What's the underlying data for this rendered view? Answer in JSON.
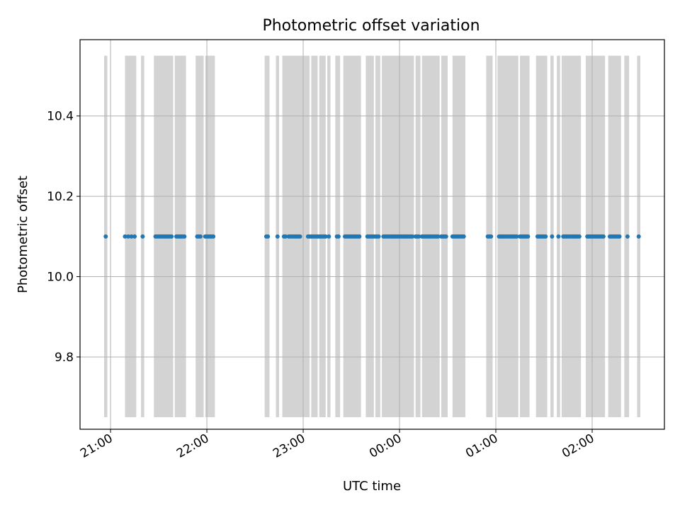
{
  "chart_data": {
    "type": "scatter",
    "title": "Photometric offset variation",
    "xlabel": "UTC time",
    "ylabel": "Photometric offset",
    "x_is_time": true,
    "xlim": [
      "20:41",
      "02:45"
    ],
    "ylim": [
      9.62,
      10.59
    ],
    "grid": true,
    "x_ticks": [
      "21:00",
      "22:00",
      "23:00",
      "00:00",
      "01:00",
      "02:00"
    ],
    "y_ticks": [
      "9.8",
      "10.0",
      "10.2",
      "10.4"
    ],
    "colors": {
      "points": "#1f77b4",
      "bands": "#d3d3d3",
      "grid": "#b0b0b0"
    },
    "band_range": [
      9.65,
      10.55
    ],
    "bands": [
      [
        "20:56",
        "20:58"
      ],
      [
        "21:09",
        "21:16"
      ],
      [
        "21:19",
        "21:21"
      ],
      [
        "21:27",
        "21:39"
      ],
      [
        "21:40",
        "21:47"
      ],
      [
        "21:53",
        "21:58"
      ],
      [
        "21:59",
        "22:05"
      ],
      [
        "22:36",
        "22:39"
      ],
      [
        "22:43",
        "22:45"
      ],
      [
        "22:47",
        "23:04"
      ],
      [
        "23:05",
        "23:09"
      ],
      [
        "23:10",
        "23:14"
      ],
      [
        "23:15",
        "23:17"
      ],
      [
        "23:20",
        "23:23"
      ],
      [
        "23:25",
        "23:36"
      ],
      [
        "23:39",
        "23:44"
      ],
      [
        "23:45",
        "23:48"
      ],
      [
        "23:49",
        "00:09"
      ],
      [
        "00:10",
        "00:13"
      ],
      [
        "00:14",
        "00:25"
      ],
      [
        "00:26",
        "00:30"
      ],
      [
        "00:33",
        "00:41"
      ],
      [
        "00:54",
        "00:58"
      ],
      [
        "01:01",
        "01:14"
      ],
      [
        "01:15",
        "01:21"
      ],
      [
        "01:25",
        "01:32"
      ],
      [
        "01:34",
        "01:36"
      ],
      [
        "01:38",
        "01:40"
      ],
      [
        "01:41",
        "01:53"
      ],
      [
        "01:56",
        "02:08"
      ],
      [
        "02:10",
        "02:18"
      ],
      [
        "02:20",
        "02:23"
      ],
      [
        "02:28",
        "02:30"
      ]
    ],
    "series": [
      {
        "y": 10.1,
        "x": [
          "20:57",
          "21:09",
          "21:11",
          "21:13",
          "21:15",
          "21:20",
          "21:28",
          "21:29",
          "21:30",
          "21:31",
          "21:32",
          "21:33",
          "21:34",
          "21:35",
          "21:36",
          "21:37",
          "21:38",
          "21:41",
          "21:42",
          "21:43",
          "21:44",
          "21:45",
          "21:46",
          "21:54",
          "21:55",
          "21:56",
          "21:59",
          "22:00",
          "22:01",
          "22:02",
          "22:03",
          "22:04",
          "22:37",
          "22:38",
          "22:44",
          "22:48",
          "22:49",
          "22:51",
          "22:52",
          "22:53",
          "22:54",
          "22:55",
          "22:56",
          "22:57",
          "22:58",
          "23:03",
          "23:04",
          "23:05",
          "23:06",
          "23:07",
          "23:08",
          "23:09",
          "23:10",
          "23:11",
          "23:12",
          "23:13",
          "23:14",
          "23:16",
          "23:21",
          "23:22",
          "23:26",
          "23:27",
          "23:28",
          "23:29",
          "23:30",
          "23:31",
          "23:32",
          "23:33",
          "23:34",
          "23:35",
          "23:40",
          "23:41",
          "23:42",
          "23:43",
          "23:44",
          "23:45",
          "23:46",
          "23:47",
          "23:50",
          "23:51",
          "23:52",
          "23:53",
          "23:54",
          "23:55",
          "23:56",
          "23:57",
          "23:58",
          "23:59",
          "00:00",
          "00:01",
          "00:02",
          "00:03",
          "00:04",
          "00:05",
          "00:06",
          "00:07",
          "00:08",
          "00:10",
          "00:11",
          "00:12",
          "00:14",
          "00:15",
          "00:16",
          "00:17",
          "00:18",
          "00:19",
          "00:20",
          "00:21",
          "00:22",
          "00:23",
          "00:24",
          "00:26",
          "00:27",
          "00:28",
          "00:29",
          "00:33",
          "00:34",
          "00:35",
          "00:36",
          "00:37",
          "00:38",
          "00:39",
          "00:40",
          "00:55",
          "00:56",
          "00:57",
          "01:02",
          "01:03",
          "01:04",
          "01:05",
          "01:06",
          "01:07",
          "01:08",
          "01:09",
          "01:10",
          "01:11",
          "01:12",
          "01:13",
          "01:15",
          "01:16",
          "01:17",
          "01:18",
          "01:19",
          "01:20",
          "01:26",
          "01:27",
          "01:28",
          "01:29",
          "01:30",
          "01:31",
          "01:35",
          "01:39",
          "01:42",
          "01:43",
          "01:44",
          "01:45",
          "01:46",
          "01:47",
          "01:48",
          "01:49",
          "01:50",
          "01:51",
          "01:52",
          "01:57",
          "01:58",
          "01:59",
          "02:00",
          "02:01",
          "02:02",
          "02:03",
          "02:04",
          "02:05",
          "02:06",
          "02:07",
          "02:11",
          "02:12",
          "02:13",
          "02:14",
          "02:15",
          "02:16",
          "02:17",
          "02:22",
          "02:29"
        ]
      }
    ]
  }
}
